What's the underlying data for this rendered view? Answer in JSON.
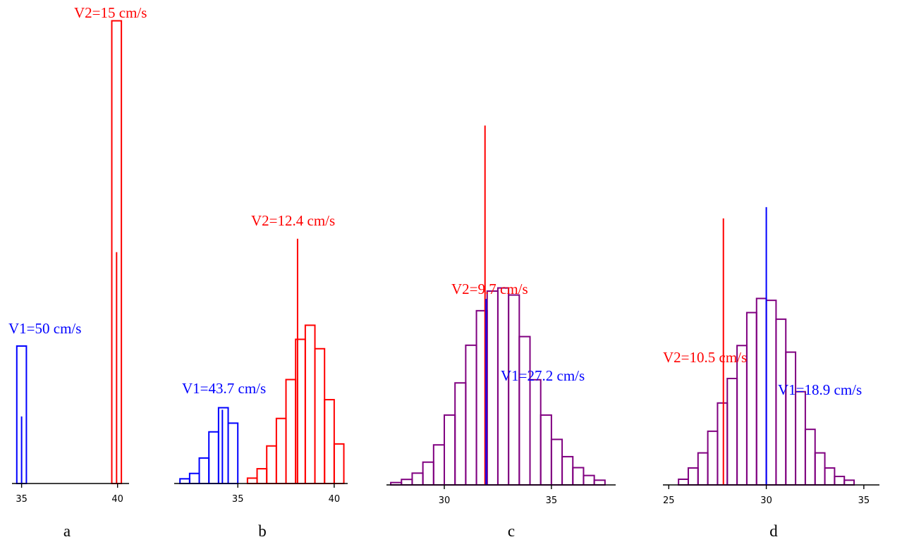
{
  "colors": {
    "v1": "#0000ff",
    "v2": "#ff0000",
    "combined": "#800080",
    "axis": "#000000"
  },
  "chart_data": [
    {
      "panel": "a",
      "type": "bar",
      "xlim": [
        34.5,
        40.6
      ],
      "ymax": 700,
      "x_ticks": [
        35,
        40
      ],
      "series": [
        {
          "key": "v1",
          "bins": [
            [
              34.75,
              35.25,
              205
            ]
          ],
          "mean": 35.0,
          "mean_height": 100
        },
        {
          "key": "v2",
          "bins": [
            [
              39.7,
              40.2,
              690
            ]
          ],
          "mean": 39.95,
          "mean_height": 345
        }
      ],
      "labels": [
        {
          "key": "v1",
          "text": "V1=50 cm/s"
        },
        {
          "key": "v2",
          "text": "V2=15 cm/s"
        }
      ]
    },
    {
      "panel": "b",
      "type": "bar",
      "xlim": [
        31.7,
        40.7
      ],
      "ymax": 700,
      "x_ticks": [
        35,
        40
      ],
      "series": [
        {
          "key": "v1",
          "bins": [
            [
              32.0,
              32.5,
              7
            ],
            [
              32.5,
              33.0,
              15
            ],
            [
              33.0,
              33.5,
              38
            ],
            [
              33.5,
              34.0,
              77
            ],
            [
              34.0,
              34.5,
              113
            ],
            [
              34.5,
              35.0,
              90
            ]
          ],
          "mean": 34.2,
          "mean_height": 110
        },
        {
          "key": "v2",
          "bins": [
            [
              35.5,
              36.0,
              8
            ],
            [
              36.0,
              36.5,
              22
            ],
            [
              36.5,
              37.0,
              56
            ],
            [
              37.0,
              37.5,
              97
            ],
            [
              37.5,
              38.0,
              155
            ],
            [
              38.0,
              38.5,
              215
            ],
            [
              38.5,
              39.0,
              236
            ],
            [
              39.0,
              39.5,
              201
            ],
            [
              39.5,
              40.0,
              125
            ],
            [
              40.0,
              40.5,
              59
            ]
          ],
          "mean": 38.1,
          "mean_height": 365
        }
      ],
      "labels": [
        {
          "key": "v1",
          "text": "V1=43.7 cm/s"
        },
        {
          "key": "v2",
          "text": "V2=12.4 cm/s"
        }
      ]
    },
    {
      "panel": "c",
      "type": "bar",
      "xlim": [
        27.3,
        38.0
      ],
      "ymax": 600,
      "x_ticks": [
        30,
        35
      ],
      "series": [
        {
          "key": "combined",
          "bins": [
            [
              27.5,
              28.0,
              3
            ],
            [
              28.0,
              28.5,
              7
            ],
            [
              28.5,
              29.0,
              15
            ],
            [
              29.0,
              29.5,
              29
            ],
            [
              29.5,
              30.0,
              51
            ],
            [
              30.0,
              30.5,
              89
            ],
            [
              30.5,
              31.0,
              130
            ],
            [
              31.0,
              31.5,
              178
            ],
            [
              31.5,
              32.0,
              222
            ],
            [
              32.0,
              32.5,
              247
            ],
            [
              32.5,
              33.0,
              251
            ],
            [
              33.0,
              33.5,
              242
            ],
            [
              33.5,
              34.0,
              189
            ],
            [
              34.0,
              34.5,
              134
            ],
            [
              34.5,
              35.0,
              89
            ],
            [
              35.0,
              35.5,
              58
            ],
            [
              35.5,
              36.0,
              36
            ],
            [
              36.0,
              36.5,
              22
            ],
            [
              36.5,
              37.0,
              12
            ],
            [
              37.0,
              37.5,
              6
            ]
          ]
        },
        {
          "key": "v2",
          "bins": [],
          "mean": 31.9,
          "mean_height": 458
        },
        {
          "key": "v1",
          "bins": [],
          "mean": 31.95,
          "mean_height": 237
        }
      ],
      "labels": [
        {
          "key": "v2",
          "text": "V2=9.7 cm/s"
        },
        {
          "key": "v1",
          "text": "V1=27.2 cm/s"
        }
      ]
    },
    {
      "panel": "d",
      "type": "bar",
      "xlim": [
        24.7,
        35.8
      ],
      "ymax": 500,
      "x_ticks": [
        25,
        30,
        35
      ],
      "series": [
        {
          "key": "combined",
          "bins": [
            [
              25.5,
              26.0,
              6
            ],
            [
              26.0,
              26.5,
              18
            ],
            [
              26.5,
              27.0,
              34
            ],
            [
              27.0,
              27.5,
              57
            ],
            [
              27.5,
              28.0,
              87
            ],
            [
              28.0,
              28.5,
              113
            ],
            [
              28.5,
              29.0,
              148
            ],
            [
              29.0,
              29.5,
              183
            ],
            [
              29.5,
              30.0,
              198
            ],
            [
              30.0,
              30.5,
              196
            ],
            [
              30.5,
              31.0,
              176
            ],
            [
              31.0,
              31.5,
              141
            ],
            [
              31.5,
              32.0,
              99
            ],
            [
              32.0,
              32.5,
              59
            ],
            [
              32.5,
              33.0,
              34
            ],
            [
              33.0,
              33.5,
              18
            ],
            [
              33.5,
              34.0,
              9
            ],
            [
              34.0,
              34.5,
              5
            ]
          ]
        },
        {
          "key": "v2",
          "bins": [],
          "mean": 27.8,
          "mean_height": 283
        },
        {
          "key": "v1",
          "bins": [],
          "mean": 30.0,
          "mean_height": 295
        }
      ],
      "labels": [
        {
          "key": "v2",
          "text": "V2=10.5 cm/s"
        },
        {
          "key": "v1",
          "text": "V1=18.9 cm/s"
        }
      ]
    }
  ],
  "panel_letters": [
    "a",
    "b",
    "c",
    "d"
  ]
}
